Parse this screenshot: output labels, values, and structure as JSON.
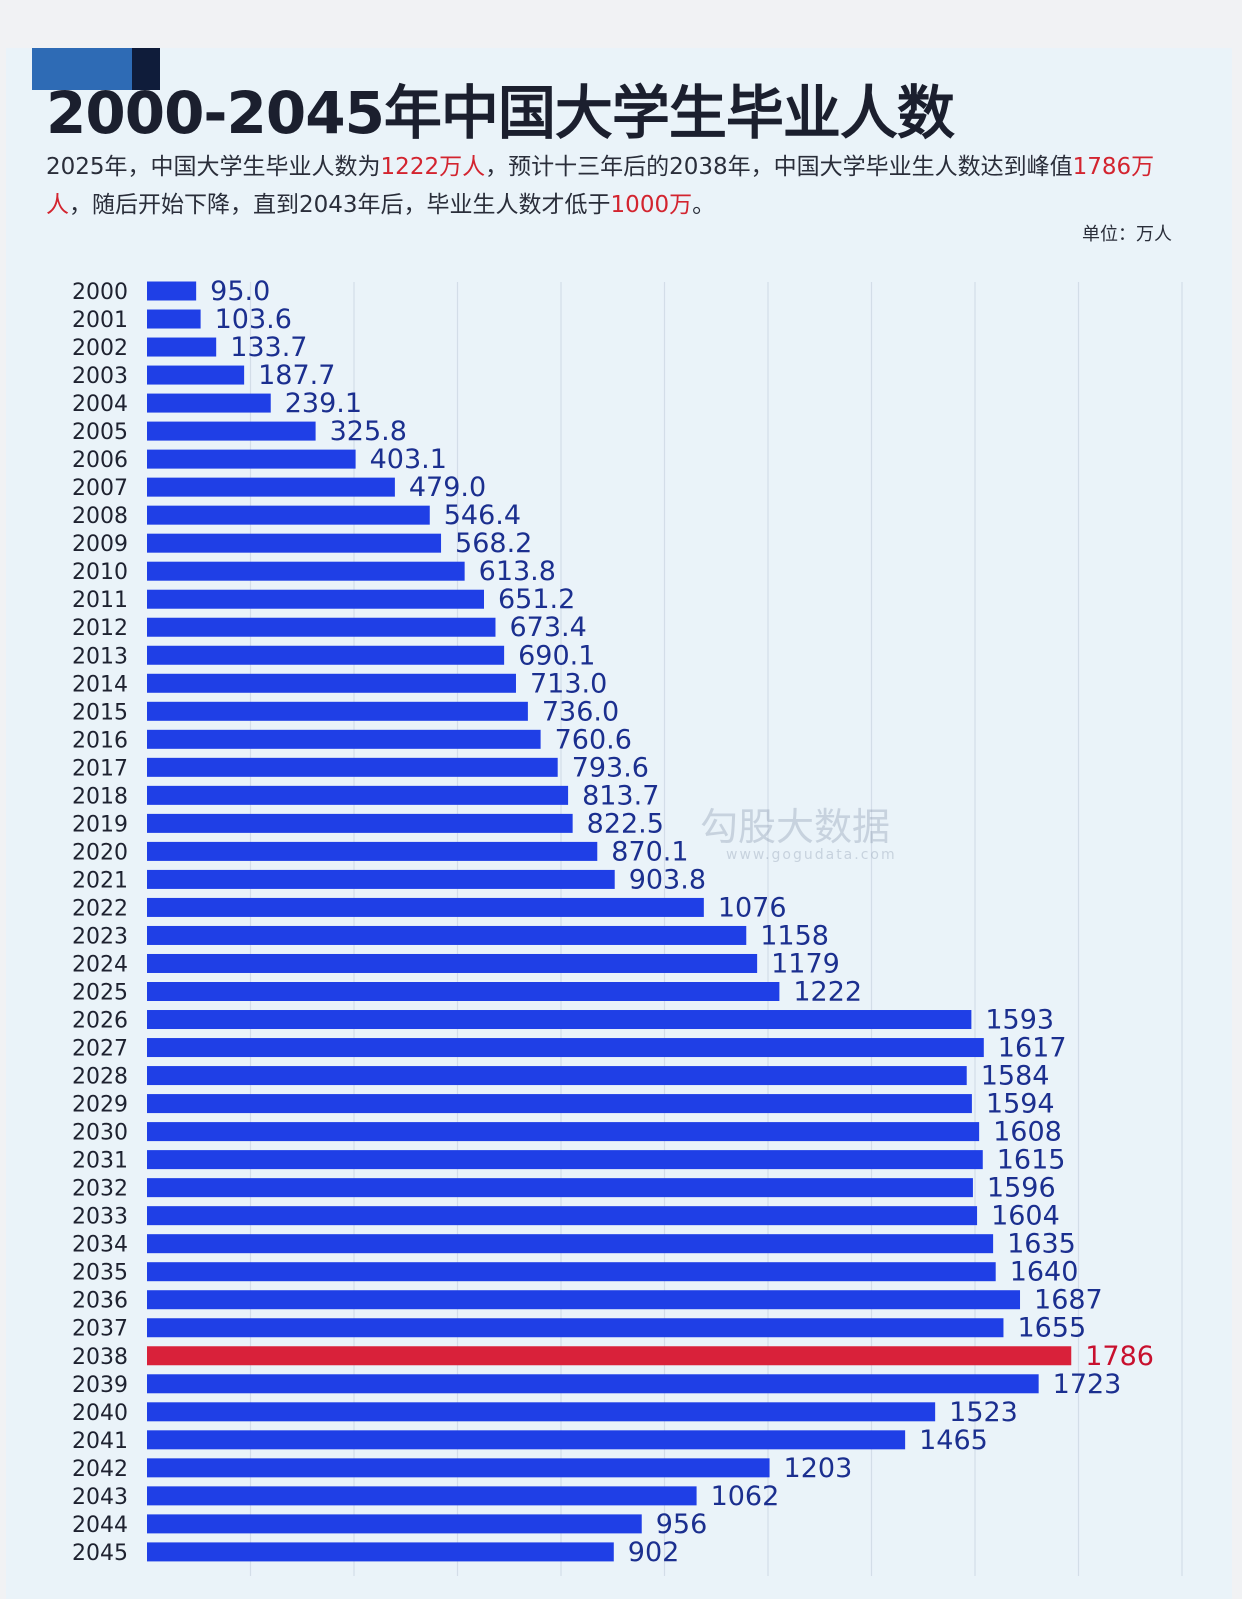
{
  "header": {
    "title": "2000-2045年中国大学生毕业人数",
    "subtitle_part1": "2025年，中国大学生毕业人数为",
    "subtitle_hl1": "1222万人",
    "subtitle_part2": "，预计十三年后的2038年，中国大学毕业生人数达到峰值",
    "subtitle_hl2": "1786万人",
    "subtitle_part3": "，随后开始下降，直到2043年后，毕业生人数才低于",
    "subtitle_hl3": "1000万",
    "subtitle_part4": "。",
    "unit": "单位：万人"
  },
  "watermark": {
    "text": "勾股大数据",
    "url": "www.gogudata.com"
  },
  "colors": {
    "bar": "#1f3fe6",
    "highlight_bar": "#d9213a",
    "label": "#1b2f8f",
    "highlight_label": "#c8102e"
  },
  "chart_data": {
    "type": "bar",
    "orientation": "horizontal",
    "title": "2000-2045年中国大学生毕业人数",
    "unit": "万人",
    "xlim": [
      0,
      2000
    ],
    "grid": true,
    "highlight": "2038",
    "categories": [
      "2000",
      "2001",
      "2002",
      "2003",
      "2004",
      "2005",
      "2006",
      "2007",
      "2008",
      "2009",
      "2010",
      "2011",
      "2012",
      "2013",
      "2014",
      "2015",
      "2016",
      "2017",
      "2018",
      "2019",
      "2020",
      "2021",
      "2022",
      "2023",
      "2024",
      "2025",
      "2026",
      "2027",
      "2028",
      "2029",
      "2030",
      "2031",
      "2032",
      "2033",
      "2034",
      "2035",
      "2036",
      "2037",
      "2038",
      "2039",
      "2040",
      "2041",
      "2042",
      "2043",
      "2044",
      "2045"
    ],
    "values": [
      95.0,
      103.6,
      133.7,
      187.7,
      239.1,
      325.8,
      403.1,
      479.0,
      546.4,
      568.2,
      613.8,
      651.2,
      673.4,
      690.1,
      713.0,
      736.0,
      760.6,
      793.6,
      813.7,
      822.5,
      870.1,
      903.8,
      1076,
      1158,
      1179,
      1222,
      1593,
      1617,
      1584,
      1594,
      1608,
      1615,
      1596,
      1604,
      1635,
      1640,
      1687,
      1655,
      1786,
      1723,
      1523,
      1465,
      1203,
      1062,
      956,
      902
    ],
    "value_labels": [
      "95.0",
      "103.6",
      "133.7",
      "187.7",
      "239.1",
      "325.8",
      "403.1",
      "479.0",
      "546.4",
      "568.2",
      "613.8",
      "651.2",
      "673.4",
      "690.1",
      "713.0",
      "736.0",
      "760.6",
      "793.6",
      "813.7",
      "822.5",
      "870.1",
      "903.8",
      "1076",
      "1158",
      "1179",
      "1222",
      "1593",
      "1617",
      "1584",
      "1594",
      "1608",
      "1615",
      "1596",
      "1604",
      "1635",
      "1640",
      "1687",
      "1655",
      "1786",
      "1723",
      "1523",
      "1465",
      "1203",
      "1062",
      "956",
      "902"
    ]
  }
}
